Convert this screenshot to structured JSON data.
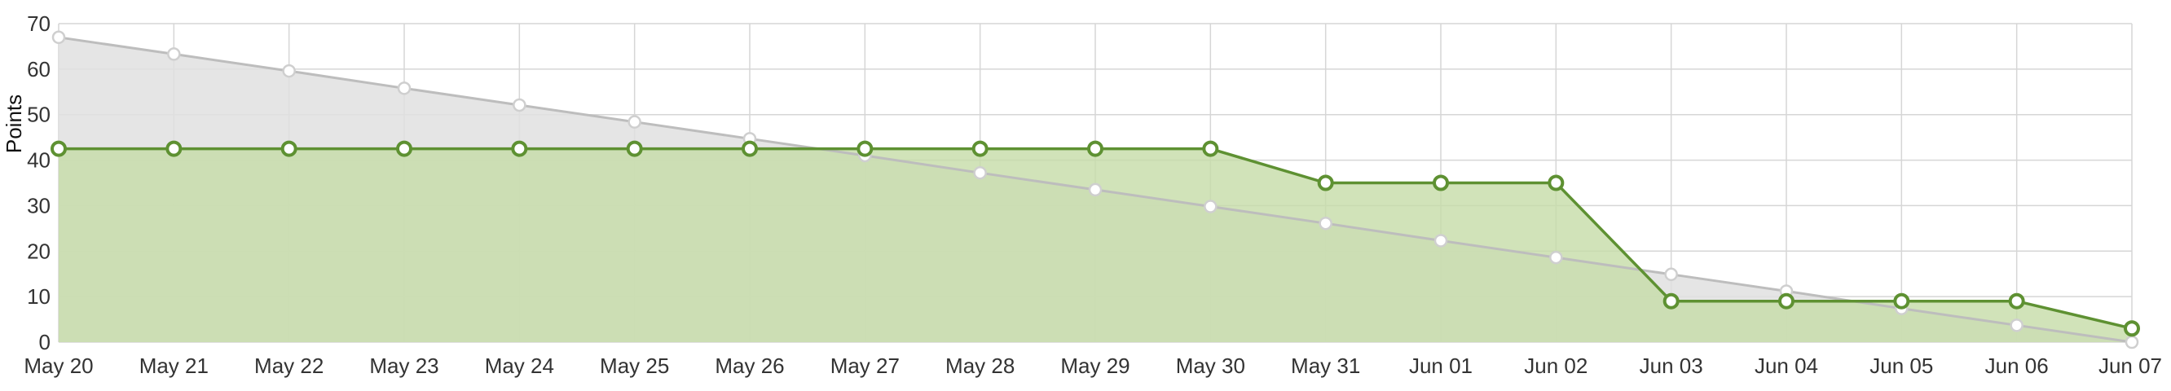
{
  "chart_data": {
    "type": "area",
    "title": "",
    "xlabel": "",
    "ylabel": "Points",
    "ylim": [
      0,
      70
    ],
    "yticks": [
      0,
      10,
      20,
      30,
      40,
      50,
      60,
      70
    ],
    "grid": true,
    "legend": "none",
    "categories": [
      "May 20",
      "May 21",
      "May 22",
      "May 23",
      "May 24",
      "May 25",
      "May 26",
      "May 27",
      "May 28",
      "May 29",
      "May 30",
      "May 31",
      "Jun 01",
      "Jun 02",
      "Jun 03",
      "Jun 04",
      "Jun 05",
      "Jun 06",
      "Jun 07"
    ],
    "series": [
      {
        "key": "ideal",
        "color": "#bdbdbd",
        "fill": "#e0e0e0",
        "values": [
          67,
          63.3,
          59.6,
          55.8,
          52.1,
          48.4,
          44.7,
          41.0,
          37.2,
          33.5,
          29.8,
          26.1,
          22.3,
          18.6,
          14.9,
          11.2,
          7.4,
          3.7,
          0
        ]
      },
      {
        "key": "actual",
        "color": "#5e9132",
        "fill": "#c5dca8",
        "values": [
          42.5,
          42.5,
          42.5,
          42.5,
          42.5,
          42.5,
          42.5,
          42.5,
          42.5,
          42.5,
          42.5,
          35,
          35,
          35,
          9,
          9,
          9,
          9,
          3
        ]
      }
    ]
  }
}
